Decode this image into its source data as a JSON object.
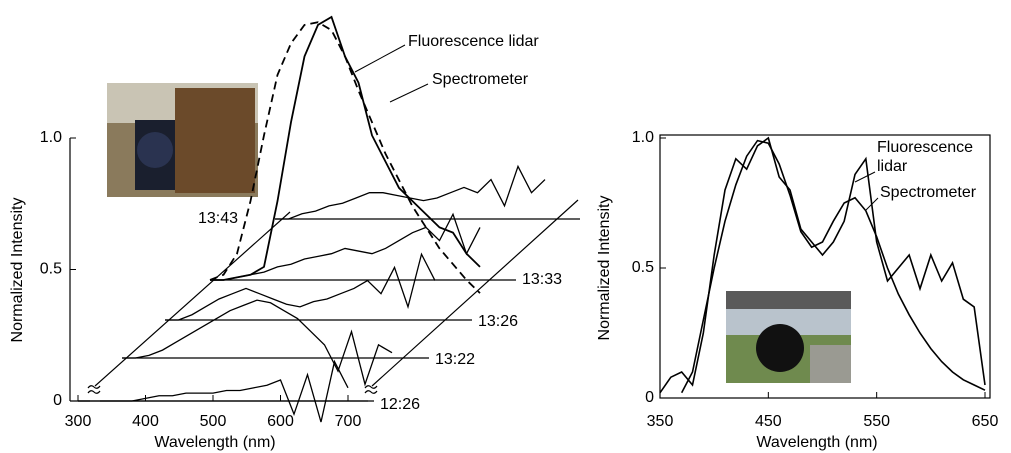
{
  "chart_data": [
    {
      "type": "waterfall",
      "xlabel": "Wavelength (nm)",
      "ylabel": "Normalized Intensity",
      "xlim": [
        300,
        700
      ],
      "ylim": [
        0,
        1
      ],
      "xticks": [
        300,
        400,
        500,
        600,
        700
      ],
      "yticks": [
        0,
        0.5,
        {
          "value": 1,
          "label": "1.0"
        }
      ],
      "x": [
        300,
        320,
        340,
        360,
        380,
        400,
        420,
        440,
        460,
        480,
        500,
        520,
        540,
        560,
        580,
        600,
        620,
        640,
        660,
        680,
        700
      ],
      "series": [
        {
          "name": "12:26",
          "color": "#000000",
          "values": [
            0,
            0,
            0,
            0,
            0,
            0.01,
            0.02,
            0.02,
            0.03,
            0.03,
            0.03,
            0.04,
            0.04,
            0.05,
            0.06,
            0.08,
            -0.05,
            0.1,
            -0.08,
            0.15,
            0.05
          ]
        },
        {
          "name": "13:22",
          "color": "#000000",
          "values": [
            0,
            0,
            0.01,
            0.03,
            0.06,
            0.09,
            0.12,
            0.15,
            0.18,
            0.2,
            0.22,
            0.21,
            0.18,
            0.15,
            0.1,
            0.05,
            -0.05,
            0.1,
            -0.1,
            0.05,
            0.02
          ]
        },
        {
          "name": "13:26",
          "color": "#000000",
          "values": [
            0,
            0,
            0.02,
            0.05,
            0.08,
            0.1,
            0.12,
            0.1,
            0.08,
            0.06,
            0.05,
            0.07,
            0.08,
            0.1,
            0.12,
            0.15,
            0.1,
            0.2,
            0.05,
            0.25,
            0.15
          ]
        },
        {
          "name": "13:33",
          "color": "#000000",
          "values": [
            0,
            0,
            0.01,
            0.02,
            0.03,
            0.05,
            0.06,
            0.08,
            0.09,
            0.1,
            0.12,
            0.11,
            0.1,
            0.12,
            0.15,
            0.18,
            0.2,
            0.15,
            0.25,
            0.1,
            0.2
          ]
        },
        {
          "name": "13:43",
          "color": "#000000",
          "values": [
            0,
            0,
            0.02,
            0.03,
            0.05,
            0.06,
            0.08,
            0.1,
            0.1,
            0.09,
            0.08,
            0.07,
            0.08,
            0.1,
            0.12,
            0.1,
            0.15,
            0.05,
            0.2,
            0.1,
            0.15
          ]
        },
        {
          "name": "Fluorescence lidar",
          "color": "#000000",
          "values": [
            0,
            0,
            0.01,
            0.02,
            0.05,
            0.3,
            0.6,
            0.85,
            0.97,
            1.0,
            0.85,
            0.75,
            0.55,
            0.45,
            0.35,
            0.3,
            0.25,
            0.2,
            0.18,
            0.1,
            0.05
          ]
        },
        {
          "name": "Spectrometer",
          "color": "#000000",
          "style": "dashed",
          "values": [
            0,
            0.02,
            0.1,
            0.3,
            0.55,
            0.78,
            0.9,
            0.97,
            0.98,
            0.95,
            0.85,
            0.72,
            0.6,
            0.48,
            0.38,
            0.28,
            0.2,
            0.12,
            0.06,
            0,
            -0.05
          ]
        }
      ]
    },
    {
      "type": "line",
      "xlabel": "Wavelength (nm)",
      "ylabel": "Normalized Intensity",
      "xlim": [
        350,
        650
      ],
      "ylim": [
        0,
        1
      ],
      "xticks": [
        350,
        450,
        550,
        650
      ],
      "yticks": [
        0,
        0.5,
        {
          "value": 1,
          "label": "1.0"
        }
      ],
      "x": [
        350,
        360,
        370,
        380,
        390,
        400,
        410,
        420,
        430,
        440,
        450,
        460,
        470,
        480,
        490,
        500,
        510,
        520,
        530,
        540,
        550,
        560,
        570,
        580,
        590,
        600,
        610,
        620,
        630,
        640,
        650
      ],
      "series": [
        {
          "name": "Fluorescence lidar",
          "color": "#000000",
          "values": [
            0.02,
            0.08,
            0.1,
            0.05,
            0.25,
            0.55,
            0.8,
            0.92,
            0.88,
            0.97,
            1.0,
            0.85,
            0.8,
            0.65,
            0.6,
            0.55,
            0.6,
            0.68,
            0.86,
            0.92,
            0.6,
            0.45,
            0.5,
            0.55,
            0.42,
            0.55,
            0.45,
            0.52,
            0.38,
            0.35,
            0.05
          ]
        },
        {
          "name": "Spectrometer",
          "color": "#000000",
          "values": [
            null,
            null,
            0.02,
            0.1,
            0.3,
            0.5,
            0.68,
            0.82,
            0.93,
            0.99,
            0.98,
            0.9,
            0.78,
            0.64,
            0.58,
            0.6,
            0.68,
            0.75,
            0.77,
            0.72,
            0.62,
            0.5,
            0.4,
            0.32,
            0.25,
            0.19,
            0.14,
            0.1,
            0.07,
            0.05,
            0.03
          ]
        }
      ]
    }
  ]
}
